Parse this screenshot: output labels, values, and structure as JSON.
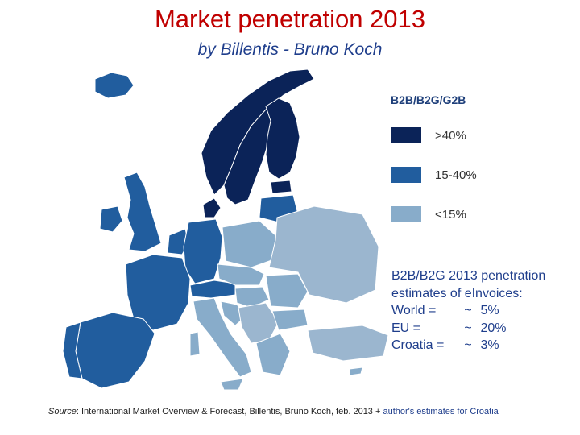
{
  "title": "Market penetration 2013",
  "subtitle": "by Billentis - Bruno Koch",
  "colors": {
    "high": "#0b2358",
    "mid": "#215d9e",
    "low": "#88acca",
    "non_eu": "#9bb6cf",
    "title": "#c00000",
    "text": "#1f3e8c"
  },
  "legend": {
    "title": "B2B/B2G/G2B",
    "items": [
      {
        "label": ">40%",
        "color": "#0b2358"
      },
      {
        "label": "15-40%",
        "color": "#215d9e"
      },
      {
        "label": "<15%",
        "color": "#88acca"
      }
    ]
  },
  "estimates": {
    "heading_line1": "B2B/B2G 2013 penetration",
    "heading_line2": "estimates of eInvoices:",
    "rows": [
      {
        "name": "World =",
        "tilde": "~",
        "value": "5%"
      },
      {
        "name": "EU =",
        "tilde": "~",
        "value": "20%"
      },
      {
        "name": "Croatia =",
        "tilde": "~",
        "value": "3%"
      }
    ]
  },
  "source": {
    "label": "Source",
    "text": ": International Market Overview & Forecast, Billentis, Bruno Koch, feb. 2013 +",
    "extra": " author's estimates for Croatia"
  }
}
